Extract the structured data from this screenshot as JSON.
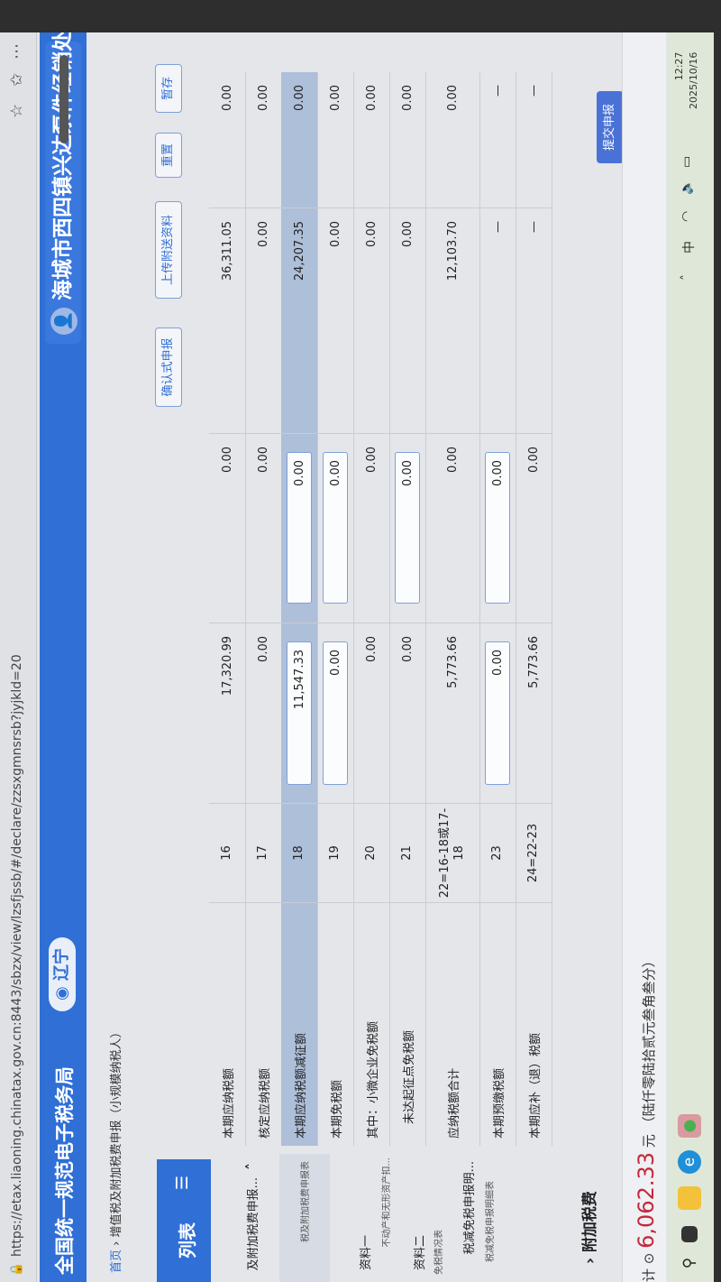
{
  "browser": {
    "url": "https://etax.liaoning.chinatax.gov.cn:8443/sbzx/view/lzsfjssb/#/declare/zzsxgmnsrsb?jyjkld=20"
  },
  "header": {
    "title": "全国统一规范电子税务局",
    "region": "辽宁",
    "user": "海城市西四镇兴达泵件经销处",
    "brand_color": "#2f6fd6"
  },
  "breadcrumb": {
    "home": "首页",
    "separator": "›",
    "current": "增值税及附加税费申报（小规模纳税人）"
  },
  "sidebar": {
    "title": "列表",
    "menu_icon": "☰",
    "items": [
      {
        "label": "及附加税费申报...",
        "sub": ""
      },
      {
        "label": "",
        "sub": "税及附加税费申报表"
      },
      {
        "label": "资料一",
        "sub": "不动产和无形资产扣..."
      },
      {
        "label": "资料二",
        "sub": "免税情况表"
      },
      {
        "label": "税减免税申报明...",
        "sub": "税减免税申报明细表"
      }
    ]
  },
  "toolbar": {
    "confirm": "确认式申报",
    "upload": "上传附送资料",
    "reset": "重置",
    "save": "暂存"
  },
  "table": {
    "rows": [
      {
        "label": "本期应纳税额",
        "no": "16",
        "a": "17,320.99",
        "b": "0.00",
        "c": "36,311.05",
        "d": "0.00"
      },
      {
        "label": "核定应纳税额",
        "no": "17",
        "a": "0.00",
        "b": "0.00",
        "c": "0.00",
        "d": "0.00"
      },
      {
        "label": "本期应纳税额减征额",
        "no": "18",
        "a": "11,547.33",
        "b": "0.00",
        "c": "24,207.35",
        "d": "0.00"
      },
      {
        "label": "本期免税额",
        "no": "19",
        "a": "0.00",
        "b": "0.00",
        "c": "0.00",
        "d": "0.00"
      },
      {
        "label": "其中：小微企业免税额",
        "no": "20",
        "a": "0.00",
        "b": "0.00",
        "c": "0.00",
        "d": "0.00"
      },
      {
        "label": "未达起征点免税额",
        "no": "21",
        "a": "0.00",
        "b": "0.00",
        "c": "0.00",
        "d": "0.00"
      },
      {
        "label": "应纳税额合计",
        "no": "22=16-18或17-18",
        "a": "5,773.66",
        "b": "0.00",
        "c": "12,103.70",
        "d": "0.00"
      },
      {
        "label": "本期预缴税额",
        "no": "23",
        "a": "0.00",
        "b": "0.00",
        "c": "—",
        "d": "—"
      },
      {
        "label": "本期应补（退）税额",
        "no": "24=22-23",
        "a": "5,773.66",
        "b": "0.00",
        "c": "—",
        "d": "—"
      }
    ]
  },
  "section": {
    "chevron": "›",
    "title": "附加税费"
  },
  "footer": {
    "label": "计",
    "icon": "⊙",
    "amount": "6,062.33",
    "unit": "元",
    "amount_words": "（陆仟零陆拾贰元叁角叁分）",
    "amount_color": "#c4283b"
  },
  "submit": {
    "label": "提交申报"
  },
  "taskbar": {
    "time": "12:27",
    "date": "2025/10/16",
    "ime": "中"
  }
}
